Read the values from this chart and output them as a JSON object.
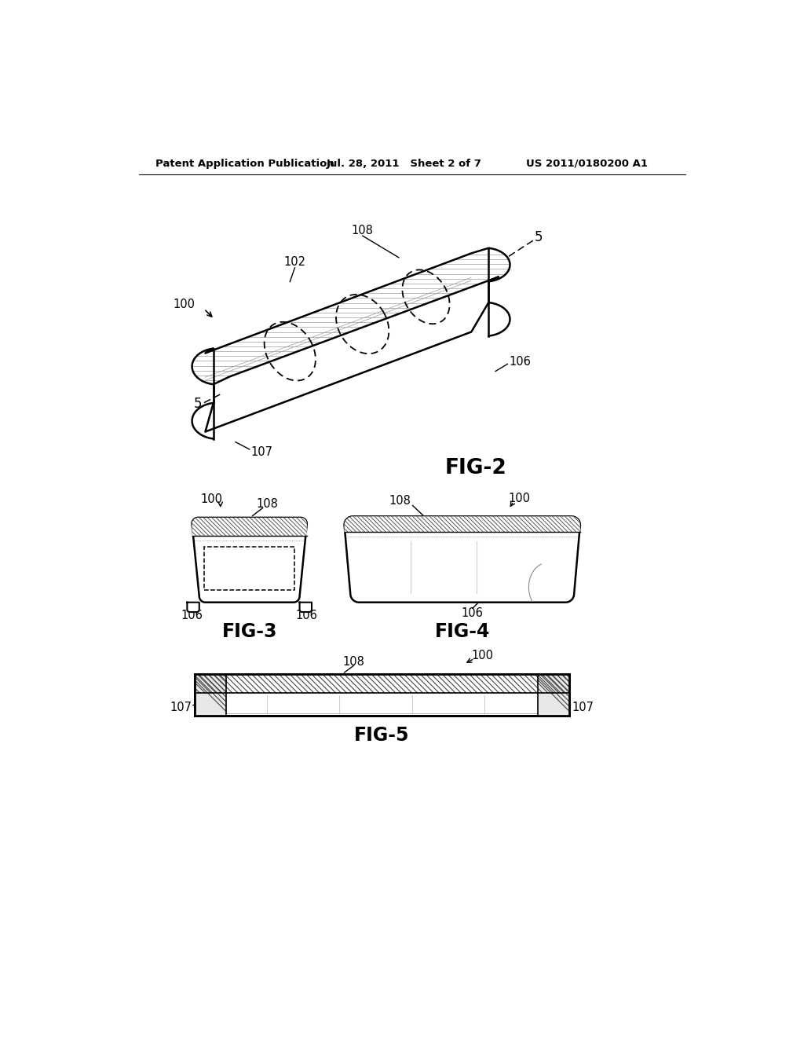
{
  "bg_color": "#ffffff",
  "header_left": "Patent Application Publication",
  "header_mid": "Jul. 28, 2011   Sheet 2 of 7",
  "header_right": "US 2011/0180200 A1",
  "fig2_label": "FIG-2",
  "fig3_label": "FIG-3",
  "fig4_label": "FIG-4",
  "fig5_label": "FIG-5",
  "text_color": "#000000",
  "line_color": "#000000",
  "hatch_color": "#666666",
  "light_line": "#aaaaaa"
}
